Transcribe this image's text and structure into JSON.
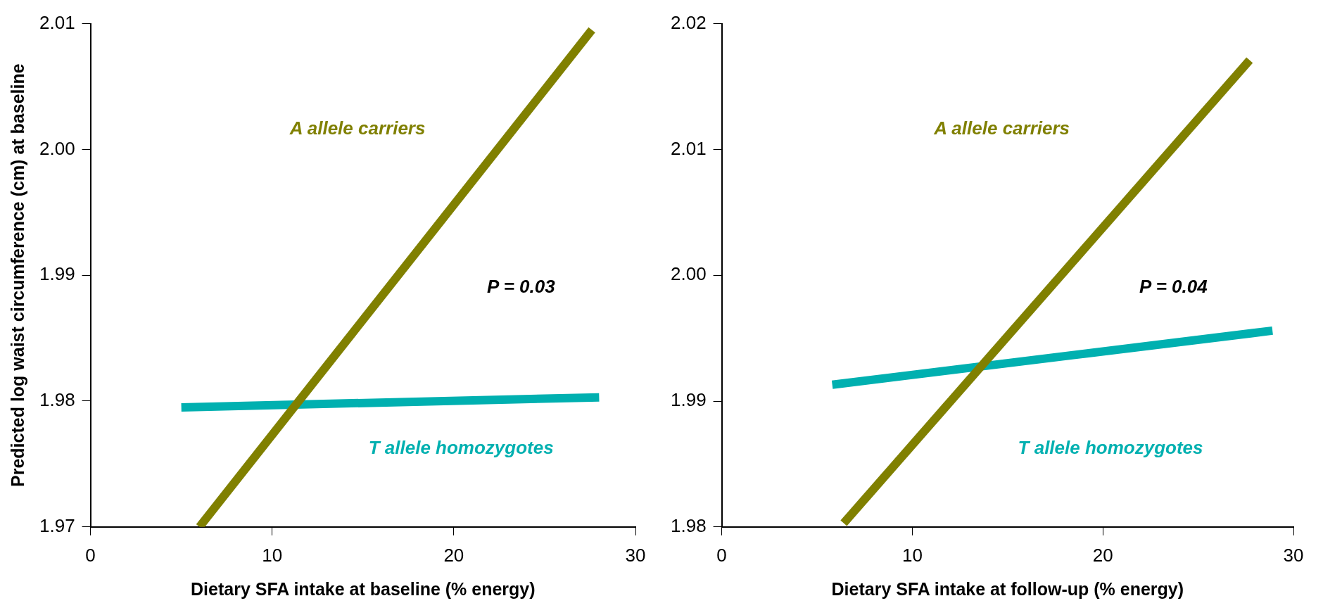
{
  "chart_data": [
    {
      "type": "line",
      "xlabel": "Dietary SFA intake at baseline (% energy)",
      "ylabel": "Predicted log waist circumference (cm) at baseline",
      "xlim": [
        0,
        30
      ],
      "xticks": [
        0,
        10,
        20,
        30
      ],
      "ylim": [
        1.97,
        2.01
      ],
      "yticks": [
        1.97,
        1.98,
        1.99,
        {
          "value": 2.0,
          "label": "2.00"
        },
        2.01
      ],
      "grid": false,
      "legend": false,
      "marker": "none",
      "line_style": "solid",
      "series": [
        {
          "name": "A allele carriers",
          "color": "#808000",
          "x": [
            6,
            27.6
          ],
          "values": [
            1.97,
            2.0095
          ]
        },
        {
          "name": "T allele homozygotes",
          "color": "#00b0b0",
          "x": [
            5,
            28
          ],
          "values": [
            1.9795,
            1.9803
          ]
        }
      ],
      "annotations": [
        "P = 0.03"
      ]
    },
    {
      "type": "line",
      "xlabel": "Dietary SFA intake at follow-up (% energy)",
      "xlim": [
        0,
        30
      ],
      "xticks": [
        0,
        10,
        20,
        30
      ],
      "ylim": [
        1.98,
        2.02
      ],
      "yticks": [
        1.98,
        1.99,
        {
          "value": 2.0,
          "label": "2.00"
        },
        2.01,
        2.02
      ],
      "grid": false,
      "legend": false,
      "marker": "none",
      "line_style": "solid",
      "series": [
        {
          "name": "A allele carriers",
          "color": "#808000",
          "x": [
            6.4,
            27.7
          ],
          "values": [
            1.9803,
            2.0171
          ]
        },
        {
          "name": "T allele homozygotes",
          "color": "#00b0b0",
          "x": [
            5.8,
            28.9
          ],
          "values": [
            1.9913,
            1.9956
          ]
        }
      ],
      "annotations": [
        "P = 0.04"
      ]
    }
  ]
}
